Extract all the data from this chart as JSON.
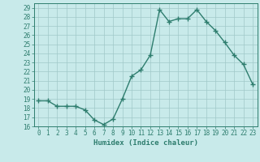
{
  "xlabel": "Humidex (Indice chaleur)",
  "ylabel": "",
  "x": [
    0,
    1,
    2,
    3,
    4,
    5,
    6,
    7,
    8,
    9,
    10,
    11,
    12,
    13,
    14,
    15,
    16,
    17,
    18,
    19,
    20,
    21,
    22,
    23
  ],
  "y": [
    18.8,
    18.8,
    18.2,
    18.2,
    18.2,
    17.8,
    16.7,
    16.2,
    16.8,
    19.0,
    21.5,
    22.2,
    23.8,
    28.8,
    27.5,
    27.8,
    27.8,
    28.8,
    27.5,
    26.5,
    25.2,
    23.8,
    22.8,
    20.6
  ],
  "line_color": "#2e7d6e",
  "marker": "+",
  "marker_size": 4,
  "bg_color": "#c8eaea",
  "grid_color": "#a0c8c8",
  "tick_color": "#2e7d6e",
  "label_color": "#2e7d6e",
  "ylim_min": 16,
  "ylim_max": 29.5,
  "yticks": [
    16,
    17,
    18,
    19,
    20,
    21,
    22,
    23,
    24,
    25,
    26,
    27,
    28,
    29
  ],
  "xtick_labels": [
    "0",
    "1",
    "2",
    "3",
    "4",
    "5",
    "6",
    "7",
    "8",
    "9",
    "10",
    "11",
    "12",
    "13",
    "14",
    "15",
    "16",
    "17",
    "18",
    "19",
    "20",
    "21",
    "22",
    "23"
  ],
  "xlabel_fontsize": 6.5,
  "tick_fontsize": 5.5,
  "linewidth": 1.0
}
